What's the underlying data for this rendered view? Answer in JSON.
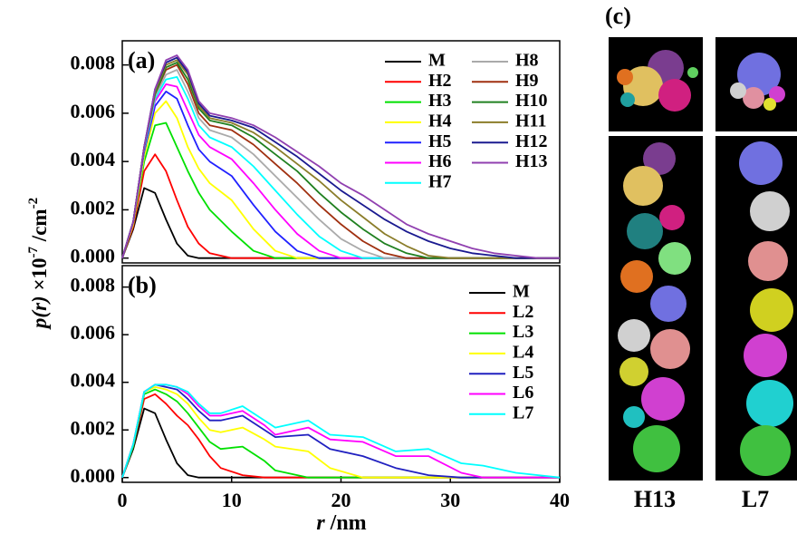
{
  "chart_data": [
    {
      "type": "line",
      "panel_label": "(a)",
      "ylabel": [
        "p(r)",
        " ×10",
        "-7",
        " /cm",
        "-2"
      ],
      "x": [
        0,
        1,
        2,
        3,
        4,
        5,
        6,
        7,
        8,
        10,
        12,
        14,
        16,
        18,
        20,
        22,
        24,
        26,
        28,
        30,
        32,
        34,
        36,
        38,
        40
      ],
      "xlim": [
        0,
        40
      ],
      "ylim": [
        -0.0002,
        0.009
      ],
      "yticks": [
        {
          "value": 0,
          "label": "0.000"
        },
        {
          "value": 0.002,
          "label": "0.002"
        },
        {
          "value": 0.004,
          "label": "0.004"
        },
        {
          "value": 0.006,
          "label": "0.006"
        },
        {
          "value": 0.008,
          "label": "0.008"
        }
      ],
      "series": [
        {
          "name": "M",
          "color": "#000000",
          "values": [
            0,
            0.0012,
            0.0029,
            0.0027,
            0.0016,
            0.0006,
            0.0001,
            0,
            0,
            0,
            0,
            0,
            0,
            0,
            0,
            0,
            0,
            0,
            0,
            0,
            0,
            0,
            0,
            0,
            0
          ]
        },
        {
          "name": "H2",
          "color": "#ff0000",
          "values": [
            0,
            0.0013,
            0.0036,
            0.0043,
            0.0036,
            0.0024,
            0.0013,
            0.0006,
            0.0002,
            0,
            0,
            0,
            0,
            0,
            0,
            0,
            0,
            0,
            0,
            0,
            0,
            0,
            0,
            0,
            0
          ]
        },
        {
          "name": "H3",
          "color": "#00e000",
          "values": [
            0,
            0.0014,
            0.004,
            0.0055,
            0.0056,
            0.0046,
            0.0036,
            0.0027,
            0.002,
            0.0011,
            0.0003,
            0,
            0,
            0,
            0,
            0,
            0,
            0,
            0,
            0,
            0,
            0,
            0,
            0,
            0
          ]
        },
        {
          "name": "H4",
          "color": "#ffff00",
          "values": [
            0,
            0.0014,
            0.0042,
            0.006,
            0.0065,
            0.0058,
            0.0046,
            0.0037,
            0.0031,
            0.0024,
            0.0012,
            0.0003,
            0,
            0,
            0,
            0,
            0,
            0,
            0,
            0,
            0,
            0,
            0,
            0,
            0
          ]
        },
        {
          "name": "H5",
          "color": "#2020ff",
          "values": [
            0,
            0.0015,
            0.0044,
            0.0063,
            0.0069,
            0.0066,
            0.0055,
            0.0045,
            0.004,
            0.0034,
            0.0022,
            0.0011,
            0.0003,
            0,
            0,
            0,
            0,
            0,
            0,
            0,
            0,
            0,
            0,
            0,
            0
          ]
        },
        {
          "name": "H6",
          "color": "#ff00ff",
          "values": [
            0,
            0.0015,
            0.0045,
            0.0065,
            0.0072,
            0.0071,
            0.0061,
            0.0051,
            0.0046,
            0.0041,
            0.0031,
            0.002,
            0.001,
            0.0003,
            0,
            0,
            0,
            0,
            0,
            0,
            0,
            0,
            0,
            0,
            0
          ]
        },
        {
          "name": "H7",
          "color": "#00ffff",
          "values": [
            0,
            0.0015,
            0.0045,
            0.0066,
            0.0074,
            0.0075,
            0.0066,
            0.0055,
            0.005,
            0.0046,
            0.0038,
            0.0028,
            0.0018,
            0.0009,
            0.0003,
            0,
            0,
            0,
            0,
            0,
            0,
            0,
            0,
            0,
            0
          ]
        },
        {
          "name": "H8",
          "color": "#aaaaaa",
          "values": [
            0,
            0.0015,
            0.0046,
            0.0067,
            0.0076,
            0.0078,
            0.0069,
            0.0058,
            0.0053,
            0.005,
            0.0043,
            0.0034,
            0.0025,
            0.0016,
            0.0008,
            0.0003,
            0,
            0,
            0,
            0,
            0,
            0,
            0,
            0,
            0
          ]
        },
        {
          "name": "H9",
          "color": "#a03010",
          "values": [
            0,
            0.0015,
            0.0046,
            0.0068,
            0.0078,
            0.008,
            0.0072,
            0.006,
            0.0055,
            0.0053,
            0.0047,
            0.0039,
            0.0031,
            0.0022,
            0.0014,
            0.0007,
            0.0002,
            0,
            0,
            0,
            0,
            0,
            0,
            0,
            0
          ]
        },
        {
          "name": "H10",
          "color": "#208020",
          "values": [
            0,
            0.0015,
            0.0046,
            0.0068,
            0.0079,
            0.0081,
            0.0074,
            0.0062,
            0.0057,
            0.0055,
            0.005,
            0.0043,
            0.0036,
            0.0027,
            0.0019,
            0.0012,
            0.0006,
            0.0002,
            0,
            0,
            0,
            0,
            0,
            0,
            0
          ]
        },
        {
          "name": "H11",
          "color": "#8b7d2a",
          "values": [
            0,
            0.0015,
            0.0046,
            0.0069,
            0.008,
            0.0082,
            0.0076,
            0.0063,
            0.0058,
            0.0056,
            0.0052,
            0.0046,
            0.0039,
            0.0032,
            0.0024,
            0.0017,
            0.001,
            0.0005,
            0.0001,
            0,
            0,
            0,
            0,
            0,
            0
          ]
        },
        {
          "name": "H12",
          "color": "#1a1a90",
          "values": [
            0,
            0.0015,
            0.0046,
            0.007,
            0.0081,
            0.0083,
            0.0077,
            0.0064,
            0.0059,
            0.0057,
            0.0054,
            0.0048,
            0.0042,
            0.0035,
            0.0028,
            0.0022,
            0.0016,
            0.0011,
            0.0007,
            0.0004,
            0.0002,
            0.0001,
            0,
            0,
            0
          ]
        },
        {
          "name": "H13",
          "color": "#9040b0",
          "values": [
            0,
            0.0015,
            0.0046,
            0.007,
            0.0082,
            0.0084,
            0.0078,
            0.0065,
            0.006,
            0.0058,
            0.0055,
            0.005,
            0.0044,
            0.0038,
            0.0031,
            0.0026,
            0.002,
            0.0014,
            0.001,
            0.0007,
            0.0004,
            0.0002,
            0.0001,
            0,
            0
          ]
        }
      ]
    },
    {
      "type": "line",
      "panel_label": "(b)",
      "xlabel": [
        "r",
        " /nm"
      ],
      "x": [
        0,
        1,
        2,
        3,
        4,
        5,
        6,
        7,
        8,
        9,
        11,
        13,
        14,
        17,
        19,
        22,
        25,
        28,
        31,
        33,
        36,
        40
      ],
      "xlim": [
        0,
        40
      ],
      "ylim": [
        -0.0002,
        0.0089
      ],
      "xticks": [
        0,
        10,
        20,
        30,
        40
      ],
      "yticks": [
        {
          "value": 0,
          "label": "0.000"
        },
        {
          "value": 0.002,
          "label": "0.002"
        },
        {
          "value": 0.004,
          "label": "0.004"
        },
        {
          "value": 0.006,
          "label": "0.006"
        },
        {
          "value": 0.008,
          "label": "0.008"
        }
      ],
      "series": [
        {
          "name": "M",
          "color": "#000000",
          "values": [
            0,
            0.0012,
            0.0029,
            0.0027,
            0.0016,
            0.0006,
            0.0001,
            0,
            0,
            0,
            0,
            0,
            0,
            0,
            0,
            0,
            0,
            0,
            0,
            0,
            0,
            0
          ]
        },
        {
          "name": "L2",
          "color": "#ff0000",
          "values": [
            0,
            0.0013,
            0.0033,
            0.0035,
            0.0031,
            0.0026,
            0.0022,
            0.0016,
            0.0009,
            0.0004,
            0.0001,
            0,
            0,
            0,
            0,
            0,
            0,
            0,
            0,
            0,
            0,
            0
          ]
        },
        {
          "name": "L3",
          "color": "#00e000",
          "values": [
            0,
            0.0013,
            0.0035,
            0.0037,
            0.0035,
            0.0032,
            0.0027,
            0.0021,
            0.0015,
            0.0012,
            0.0013,
            0.0007,
            0.0003,
            0,
            0,
            0,
            0,
            0,
            0,
            0,
            0,
            0
          ]
        },
        {
          "name": "L4",
          "color": "#ffff00",
          "values": [
            0,
            0.0014,
            0.0036,
            0.0038,
            0.0037,
            0.0035,
            0.0031,
            0.0025,
            0.002,
            0.0019,
            0.0021,
            0.0016,
            0.0013,
            0.0011,
            0.0004,
            0,
            0,
            0,
            0,
            0,
            0,
            0
          ]
        },
        {
          "name": "L5",
          "color": "#2020c0",
          "values": [
            0,
            0.0014,
            0.0036,
            0.0039,
            0.0038,
            0.0037,
            0.0033,
            0.0028,
            0.0024,
            0.0024,
            0.0026,
            0.002,
            0.0017,
            0.0018,
            0.0012,
            0.0009,
            0.0004,
            0.0001,
            0,
            0,
            0,
            0
          ]
        },
        {
          "name": "L6",
          "color": "#ff00ff",
          "values": [
            0,
            0.0014,
            0.0036,
            0.0039,
            0.0039,
            0.0038,
            0.0035,
            0.003,
            0.0026,
            0.0026,
            0.0028,
            0.0022,
            0.0018,
            0.0021,
            0.0016,
            0.0015,
            0.0009,
            0.0009,
            0.0002,
            0,
            0,
            0
          ]
        },
        {
          "name": "L7",
          "color": "#00ffff",
          "values": [
            0,
            0.0014,
            0.0036,
            0.0039,
            0.0039,
            0.0038,
            0.0036,
            0.0031,
            0.0027,
            0.0027,
            0.003,
            0.0024,
            0.0021,
            0.0024,
            0.0018,
            0.0017,
            0.0011,
            0.0012,
            0.0006,
            0.0005,
            0.0002,
            0
          ]
        }
      ]
    }
  ],
  "panel_c": {
    "label": "(c)",
    "structures": [
      "H13",
      "L7"
    ]
  }
}
